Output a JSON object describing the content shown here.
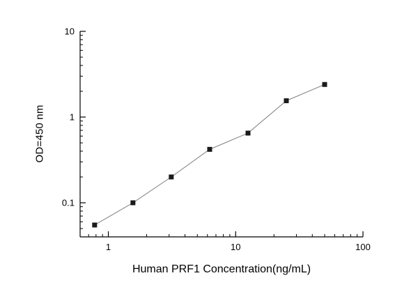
{
  "chart_data": {
    "type": "scatter",
    "title": "",
    "xlabel": "Human PRF1 Concentration(ng/mL)",
    "ylabel": "OD=450 nm",
    "x_scale": "log",
    "y_scale": "log",
    "xlim": [
      0.6,
      100
    ],
    "ylim": [
      0.04,
      10
    ],
    "x_ticks": [
      1,
      10,
      100
    ],
    "x_tick_labels": [
      "1",
      "10",
      "100"
    ],
    "y_ticks": [
      0.1,
      1,
      10
    ],
    "y_tick_labels": [
      "0.1",
      "1",
      "10"
    ],
    "x": [
      0.78,
      1.56,
      3.12,
      6.25,
      12.5,
      25,
      50
    ],
    "y": [
      0.055,
      0.1,
      0.2,
      0.42,
      0.65,
      1.55,
      2.4
    ],
    "marker": "square",
    "marker_size": 7,
    "marker_color": "#1a1a1a",
    "line_color": "#808080",
    "axis_color": "#000000",
    "grid": false,
    "legend": null
  }
}
